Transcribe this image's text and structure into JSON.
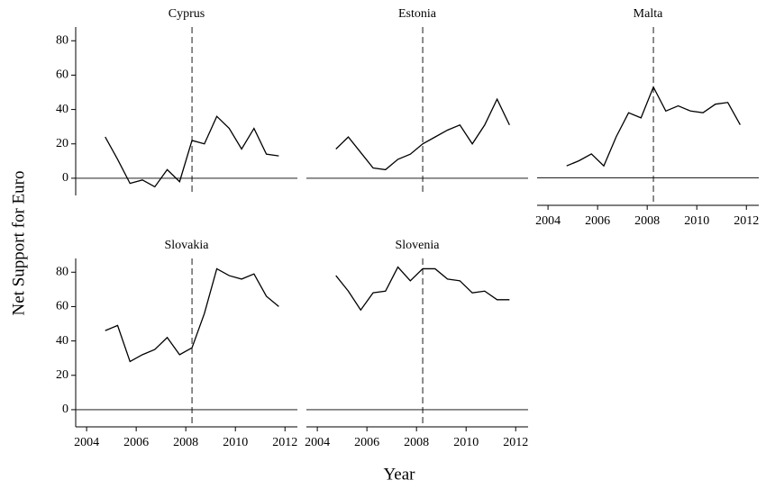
{
  "xlabel": "Year",
  "ylabel": "Net Support for Euro",
  "chart_data": [
    {
      "type": "line",
      "title": "Cyprus",
      "color": "#000000",
      "x": [
        2004.75,
        2005.25,
        2005.75,
        2006.25,
        2006.75,
        2007.25,
        2007.75,
        2008.25,
        2008.75,
        2009.25,
        2009.75,
        2010.25,
        2010.75,
        2011.25,
        2011.75
      ],
      "values": [
        24,
        11,
        -3,
        -1,
        -5,
        5,
        -2,
        22,
        20,
        36,
        29,
        17,
        29,
        14,
        13
      ],
      "xlim": [
        2003.56,
        2012.5
      ],
      "ylim": [
        -10,
        88
      ],
      "yticks": [
        0,
        20,
        40,
        60,
        80
      ],
      "hline": 0,
      "vline": 2008.25
    },
    {
      "type": "line",
      "title": "Estonia",
      "color": "#000000",
      "x": [
        2004.75,
        2005.25,
        2005.75,
        2006.25,
        2006.75,
        2007.25,
        2007.75,
        2008.25,
        2008.75,
        2009.25,
        2009.75,
        2010.25,
        2010.75,
        2011.25,
        2011.75
      ],
      "values": [
        17,
        24,
        15,
        6,
        5,
        11,
        14,
        20,
        24,
        28,
        31,
        20,
        31,
        46,
        31
      ],
      "xlim": [
        2003.56,
        2012.5
      ],
      "ylim": [
        -10,
        88
      ],
      "hline": 0,
      "vline": 2008.25
    },
    {
      "type": "line",
      "title": "Malta",
      "color": "#000000",
      "x": [
        2004.75,
        2005.25,
        2005.75,
        2006.25,
        2006.75,
        2007.25,
        2007.75,
        2008.25,
        2008.75,
        2009.25,
        2009.75,
        2010.25,
        2010.75,
        2011.25,
        2011.75
      ],
      "values": [
        7,
        10,
        14,
        7,
        24,
        38,
        35,
        53,
        39,
        42,
        39,
        38,
        43,
        44,
        31
      ],
      "xlim": [
        2003.56,
        2012.5
      ],
      "ylim": [
        -16,
        88
      ],
      "xticks": [
        2004,
        2006,
        2008,
        2010,
        2012
      ],
      "hline": 0,
      "vline": 2008.25
    },
    {
      "type": "line",
      "title": "Slovakia",
      "color": "#000000",
      "x": [
        2004.75,
        2005.25,
        2005.75,
        2006.25,
        2006.75,
        2007.25,
        2007.75,
        2008.25,
        2008.75,
        2009.25,
        2009.75,
        2010.25,
        2010.75,
        2011.25,
        2011.75
      ],
      "values": [
        46,
        49,
        28,
        32,
        35,
        42,
        32,
        36,
        56,
        82,
        78,
        76,
        79,
        66,
        60
      ],
      "xlim": [
        2003.56,
        2012.5
      ],
      "ylim": [
        -10,
        88
      ],
      "xticks": [
        2004,
        2006,
        2008,
        2010,
        2012
      ],
      "yticks": [
        0,
        20,
        40,
        60,
        80
      ],
      "hline": 0,
      "vline": 2008.25
    },
    {
      "type": "line",
      "title": "Slovenia",
      "color": "#000000",
      "x": [
        2004.75,
        2005.25,
        2005.75,
        2006.25,
        2006.75,
        2007.25,
        2007.75,
        2008.25,
        2008.75,
        2009.25,
        2009.75,
        2010.25,
        2010.75,
        2011.25,
        2011.75
      ],
      "values": [
        78,
        69,
        58,
        68,
        69,
        83,
        75,
        82,
        82,
        76,
        75,
        68,
        69,
        64,
        64
      ],
      "xlim": [
        2003.56,
        2012.5
      ],
      "ylim": [
        -10,
        88
      ],
      "xticks": [
        2004,
        2006,
        2008,
        2010,
        2012
      ],
      "hline": 0,
      "vline": 2008.25
    }
  ]
}
